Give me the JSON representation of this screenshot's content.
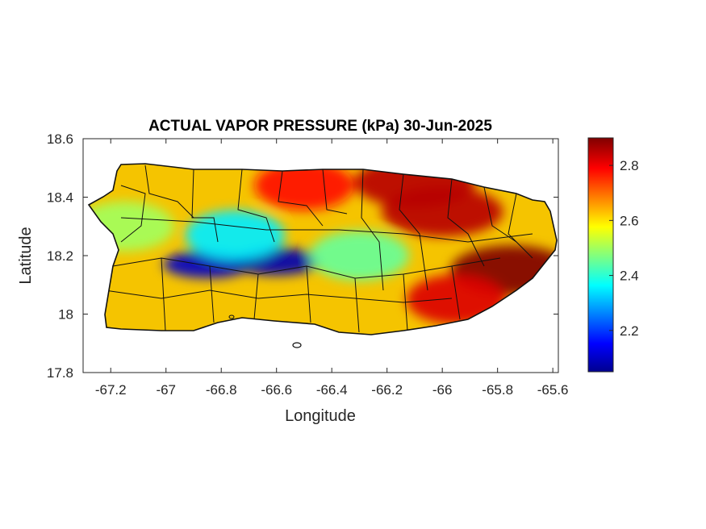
{
  "chart_data": {
    "type": "heatmap",
    "title": "ACTUAL VAPOR PRESSURE (kPa) 30-Jun-2025",
    "xlabel": "Longitude",
    "ylabel": "Latitude",
    "xlim": [
      -67.3,
      -65.58
    ],
    "ylim": [
      17.8,
      18.6
    ],
    "x_ticks": [
      -67.2,
      -67,
      -66.8,
      -66.6,
      -66.4,
      -66.2,
      -66,
      -65.8,
      -65.6
    ],
    "x_tick_labels": [
      "-67.2",
      "-67",
      "-66.8",
      "-66.6",
      "-66.4",
      "-66.2",
      "-66",
      "-65.8",
      "-65.6"
    ],
    "y_ticks": [
      17.8,
      18,
      18.2,
      18.4,
      18.6
    ],
    "y_tick_labels": [
      "17.8",
      "18",
      "18.2",
      "18.4",
      "18.6"
    ],
    "colorbar": {
      "colormap": "jet",
      "range": [
        2.05,
        2.9
      ],
      "ticks": [
        2.2,
        2.4,
        2.6,
        2.8
      ],
      "tick_labels": [
        "2.2",
        "2.4",
        "2.6",
        "2.8"
      ],
      "stops": [
        "#00008f",
        "#0000ff",
        "#00ffff",
        "#ffff00",
        "#ff0000",
        "#800000"
      ]
    },
    "field_features": [
      {
        "lon": -66.85,
        "lat": 18.17,
        "value": 2.1,
        "kind": "minimum"
      },
      {
        "lon": -66.6,
        "lat": 18.18,
        "value": 2.08,
        "kind": "minimum"
      },
      {
        "lon": -66.75,
        "lat": 18.27,
        "value": 2.35,
        "kind": "low"
      },
      {
        "lon": -67.15,
        "lat": 18.3,
        "value": 2.5,
        "kind": "low"
      },
      {
        "lon": -66.3,
        "lat": 18.2,
        "value": 2.45,
        "kind": "low"
      },
      {
        "lon": -65.75,
        "lat": 18.15,
        "value": 2.9,
        "kind": "maximum"
      },
      {
        "lon": -66.0,
        "lat": 18.35,
        "value": 2.85,
        "kind": "maximum"
      },
      {
        "lon": -66.1,
        "lat": 18.45,
        "value": 2.85,
        "kind": "maximum"
      },
      {
        "lon": -65.95,
        "lat": 18.05,
        "value": 2.82,
        "kind": "high"
      },
      {
        "lon": -66.5,
        "lat": 18.44,
        "value": 2.78,
        "kind": "high"
      }
    ],
    "grid": false
  }
}
